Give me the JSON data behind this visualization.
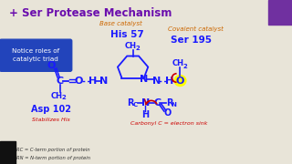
{
  "title": "+ Ser Protease Mechanism",
  "bg_color": "#e8e4d8",
  "molecule_color": "#1a1aff",
  "red_color": "#cc0000",
  "orange_color": "#cc6600",
  "purple_color": "#6a0dad",
  "yellow_highlight": "#ffff00",
  "box_text": "Notice roles of\ncatalytic triad",
  "asp_label": "Asp 102",
  "his_label": "His 57",
  "ser_label": "Ser 195",
  "stabilizes": "Stabilizes His",
  "base_catalyst": "Base catalyst",
  "covalent_catalyst": "Covalent catalyst",
  "carbonyl_note": "Carbonyl C = electron sink",
  "rc_note": "RC = C-term portion of protein",
  "rn_note": "RN = N-term portion of protein"
}
